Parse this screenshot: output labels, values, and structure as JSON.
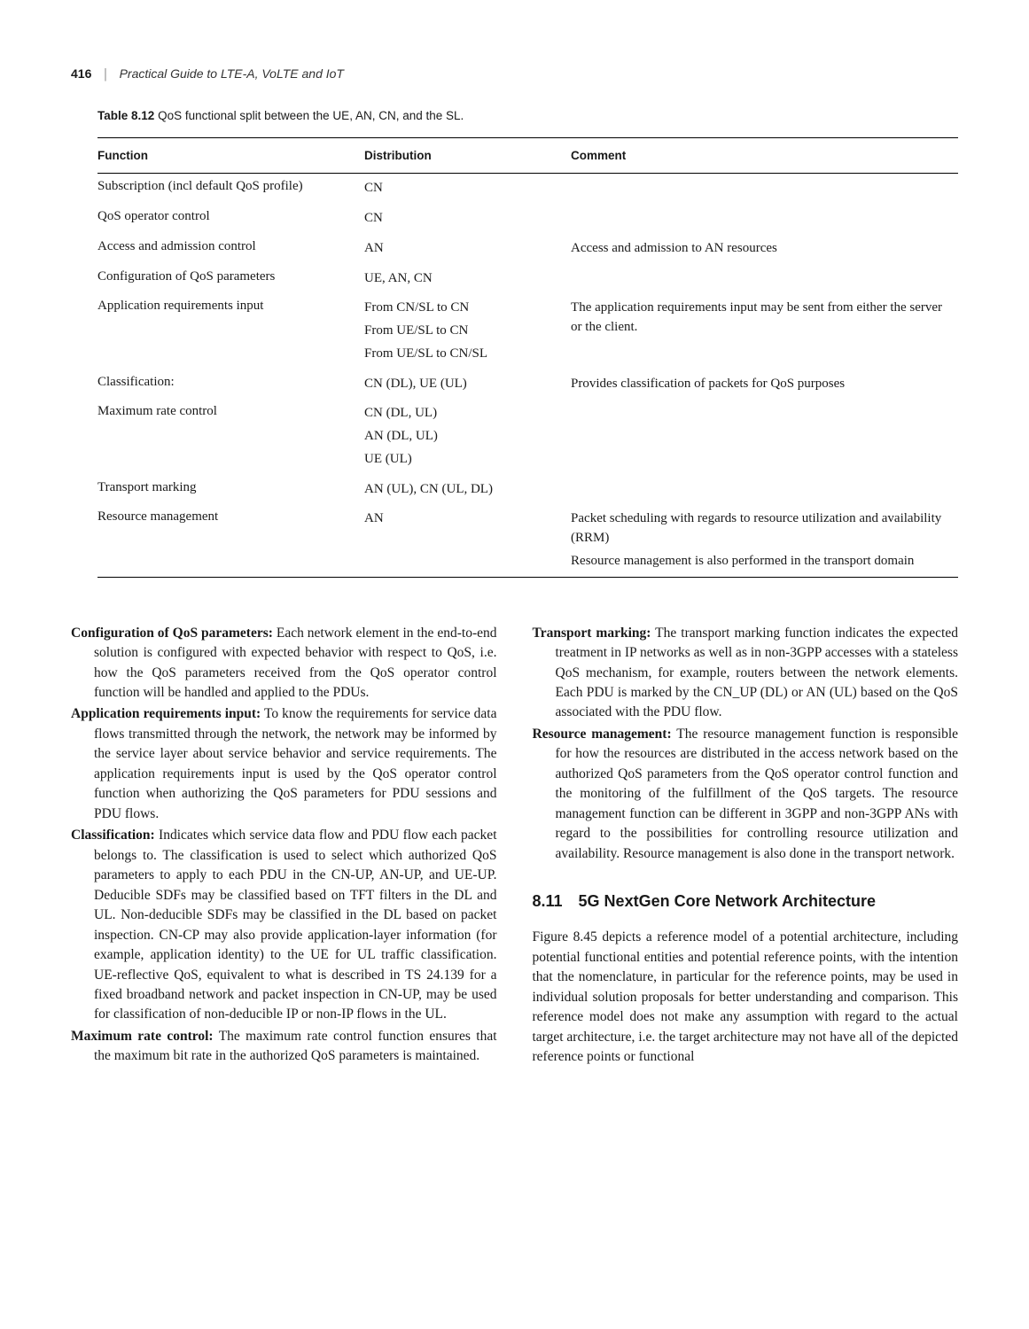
{
  "header": {
    "page_number": "416",
    "divider": "|",
    "book_title": "Practical Guide to LTE-A, VoLTE and IoT"
  },
  "table": {
    "caption_label": "Table 8.12",
    "caption_text": "QoS functional split between the UE, AN, CN, and the SL.",
    "columns": [
      "Function",
      "Distribution",
      "Comment"
    ],
    "rows": [
      {
        "function": "Subscription (incl default QoS profile)",
        "distribution": [
          "CN"
        ],
        "comment": [
          ""
        ]
      },
      {
        "function": "QoS operator control",
        "distribution": [
          "CN"
        ],
        "comment": [
          ""
        ]
      },
      {
        "function": "Access and admission control",
        "distribution": [
          "AN"
        ],
        "comment": [
          "Access and admission to AN resources"
        ]
      },
      {
        "function": "Configuration of QoS parameters",
        "distribution": [
          "UE, AN, CN"
        ],
        "comment": [
          ""
        ]
      },
      {
        "function": "Application requirements input",
        "distribution": [
          "From CN/SL to CN",
          "From UE/SL to CN",
          "From UE/SL to CN/SL"
        ],
        "comment": [
          "The application requirements input may be sent from either the server or the client."
        ]
      },
      {
        "function": "Classification:",
        "distribution": [
          "CN (DL), UE (UL)"
        ],
        "comment": [
          "Provides classification of packets for QoS purposes"
        ]
      },
      {
        "function": "Maximum rate control",
        "distribution": [
          "CN (DL, UL)",
          "AN (DL, UL)",
          "UE (UL)"
        ],
        "comment": [
          ""
        ]
      },
      {
        "function": "Transport marking",
        "distribution": [
          "AN (UL), CN (UL, DL)"
        ],
        "comment": [
          ""
        ]
      },
      {
        "function": "Resource management",
        "distribution": [
          "AN"
        ],
        "comment": [
          "Packet scheduling with regards to resource utilization and availability (RRM)",
          "Resource management is also performed in the transport domain"
        ]
      }
    ]
  },
  "left_col": [
    {
      "term": "Configuration of QoS parameters:",
      "body": " Each network element in the end-to-end solution is configured with expected behavior with respect to QoS, i.e. how the QoS parameters received from the QoS operator control function will be handled and applied to the PDUs."
    },
    {
      "term": "Application requirements input:",
      "body": " To know the requirements for service data flows transmitted through the network, the network may be informed by the service layer about service behavior and service requirements. The application requirements input is used by the QoS operator control function when authorizing the QoS parameters for PDU sessions and PDU flows."
    },
    {
      "term": "Classification:",
      "body": " Indicates which service data flow and PDU flow each packet belongs to. The classification is used to select which authorized QoS parameters to apply to each PDU in the CN-UP, AN-UP, and UE-UP. Deducible SDFs may be classified based on TFT filters in the DL and UL. Non-deducible SDFs may be classified in the DL based on packet inspection. CN-CP may also provide application-layer information (for example, application identity) to the UE for UL traffic classification. UE-reflective QoS, equivalent to what is described in TS 24.139 for a fixed broadband network and packet inspection in CN-UP, may be used for classification of non-deducible IP or non-IP flows in the UL."
    },
    {
      "term": "Maximum rate control:",
      "body": " The maximum rate control function ensures that the maximum bit rate in the authorized QoS parameters is maintained."
    }
  ],
  "right_col": [
    {
      "term": "Transport marking:",
      "body": " The transport marking function indicates the expected treatment in IP networks as well as in non-3GPP accesses with a stateless QoS mechanism, for example, routers between the network elements. Each PDU is marked by the CN_UP (DL) or AN (UL) based on the QoS associated with the PDU flow."
    },
    {
      "term": "Resource management:",
      "body": " The resource management function is responsible for how the resources are distributed in the access network based on the authorized QoS parameters from the QoS operator control function and the monitoring of the fulfillment of the QoS targets. The resource management function can be different in 3GPP and non-3GPP ANs with regard to the possibilities for controlling resource utilization and availability. Resource management is also done in the transport network."
    }
  ],
  "section": {
    "number": "8.11",
    "title": "5G NextGen Core Network Architecture",
    "body": "Figure 8.45 depicts a reference model of a potential architecture, including potential functional entities and potential reference points, with the intention that the nomenclature, in particular for the reference points, may be used in individual solution proposals for better understanding and comparison. This reference model does not make any assumption with regard to the actual target architecture, i.e. the target architecture may not have all of the depicted reference points or functional"
  }
}
